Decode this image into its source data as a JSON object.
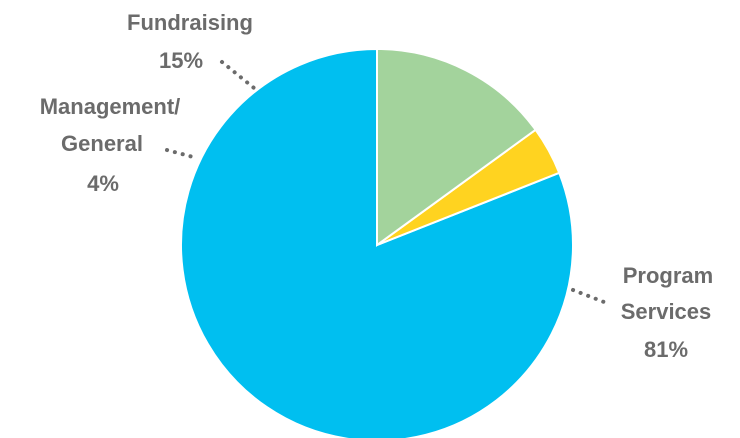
{
  "chart_data": {
    "type": "pie",
    "title": "",
    "slices": [
      {
        "label": "Program Services",
        "value": 81,
        "value_label": "81%",
        "color": "#00BFF0"
      },
      {
        "label": "Management/ General",
        "value": 4,
        "value_label": "4%",
        "color": "#FFD320"
      },
      {
        "label": "Fundraising",
        "value": 15,
        "value_label": "15%",
        "color": "#A3D39C"
      }
    ],
    "start_angle_deg": 0,
    "direction": "counterclockwise",
    "labels": {
      "program": {
        "line1": "Program",
        "line2": "Services",
        "line3": "81%"
      },
      "management": {
        "line1": "Management/",
        "line2": "General",
        "line3": "4%"
      },
      "fundraising": {
        "line1": "Fundraising",
        "line2": "15%"
      }
    }
  }
}
